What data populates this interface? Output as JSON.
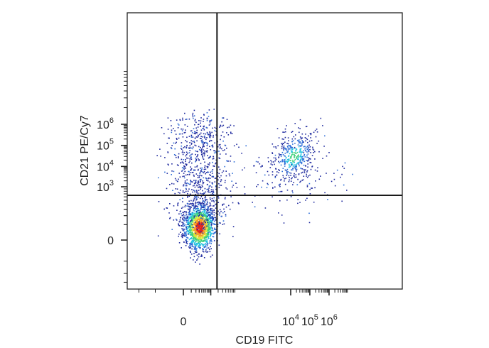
{
  "chart_data": {
    "type": "scatter",
    "title": "",
    "xlabel": "CD19 FITC",
    "ylabel": "CD21 PE/Cy7",
    "x_scale": "biexponential",
    "y_scale": "biexponential",
    "x_ticks": [
      {
        "base": "0",
        "exp": "",
        "value": 0
      },
      {
        "base": "10",
        "exp": "4",
        "value": 10000
      },
      {
        "base": "10",
        "exp": "5",
        "value": 100000
      },
      {
        "base": "10",
        "exp": "6",
        "value": 1000000
      }
    ],
    "y_ticks": [
      {
        "base": "0",
        "exp": "",
        "value": 0
      },
      {
        "base": "10",
        "exp": "3",
        "value": 1000
      },
      {
        "base": "10",
        "exp": "4",
        "value": 10000
      },
      {
        "base": "10",
        "exp": "5",
        "value": 100000
      },
      {
        "base": "10",
        "exp": "6",
        "value": 1000000
      }
    ],
    "quadrant_gates": {
      "x": 1800,
      "y": 650
    },
    "density_colormap": [
      "#1f2a9e",
      "#2f6fd8",
      "#25c3e0",
      "#3fd07a",
      "#d8e83a",
      "#f3a12a",
      "#e0261d"
    ],
    "populations": [
      {
        "name": "",
        "x_center": 300,
        "y_center": 80,
        "count": 1400,
        "density": "high"
      },
      {
        "name": "",
        "x_center": 300,
        "y_center": 5000,
        "count": 900,
        "density": "low"
      },
      {
        "name": "",
        "x_center": 14000,
        "y_center": 30000,
        "count": 420,
        "density": "medium"
      },
      {
        "name": "",
        "x_center": 18000,
        "y_center": 2500,
        "count": 120,
        "density": "low"
      }
    ],
    "grid": false,
    "legend": "none"
  }
}
